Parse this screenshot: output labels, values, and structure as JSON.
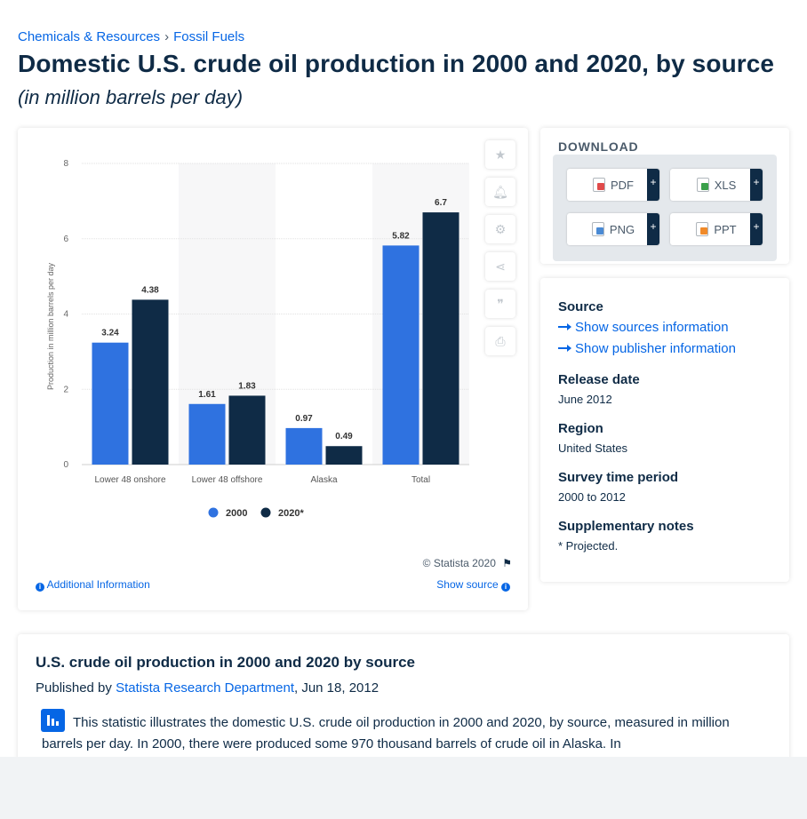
{
  "breadcrumb": {
    "items": [
      "Chemicals & Resources",
      "Fossil Fuels"
    ],
    "separator": "›"
  },
  "page": {
    "title": "Domestic U.S. crude oil production in 2000 and 2020, by source",
    "subtitle": "(in million barrels per day)"
  },
  "chart_data": {
    "type": "bar",
    "categories": [
      "Lower 48 onshore",
      "Lower 48 offshore",
      "Alaska",
      "Total"
    ],
    "series": [
      {
        "name": "2000",
        "values": [
          3.24,
          1.61,
          0.97,
          5.82
        ],
        "color": "#2f72e0"
      },
      {
        "name": "2020*",
        "values": [
          4.38,
          1.83,
          0.49,
          6.7
        ],
        "color": "#0f2b46"
      }
    ],
    "data_labels": {
      "2000": [
        "3.24",
        "1.61",
        "0.97",
        "5.82"
      ],
      "2020*": [
        "4.38",
        "1.83",
        "0.49",
        "6.7"
      ]
    },
    "ylabel": "Production in million barrels per day",
    "ylim": [
      0,
      8
    ],
    "yticks": [
      0,
      2,
      4,
      6,
      8
    ],
    "ytick_labels": [
      "0",
      "2",
      "4",
      "6",
      "8"
    ],
    "grid": true,
    "legend_position": "bottom-center"
  },
  "chart_footer": {
    "copyright": "© Statista 2020",
    "additional_info": "Additional Information",
    "show_source": "Show source"
  },
  "toolbar": {
    "icons": [
      "star-icon",
      "bell-icon",
      "gear-icon",
      "share-icon",
      "quote-icon",
      "print-icon"
    ]
  },
  "download": {
    "title": "DOWNLOAD",
    "buttons": [
      {
        "label": "PDF",
        "color": "#e04a4a"
      },
      {
        "label": "XLS",
        "color": "#3aa04a"
      },
      {
        "label": "PNG",
        "color": "#4a8ad4"
      },
      {
        "label": "PPT",
        "color": "#f08a2a"
      }
    ],
    "plus": "+"
  },
  "meta": {
    "source_heading": "Source",
    "show_sources": "Show sources information",
    "show_publisher": "Show publisher information",
    "release_heading": "Release date",
    "release_value": "June 2012",
    "region_heading": "Region",
    "region_value": "United States",
    "survey_heading": "Survey time period",
    "survey_value": "2000 to 2012",
    "notes_heading": "Supplementary notes",
    "notes_value": "* Projected."
  },
  "description": {
    "heading": "U.S. crude oil production in 2000 and 2020 by source",
    "published_prefix": "Published by ",
    "publisher": "Statista Research Department",
    "published_suffix": ", Jun 18, 2012",
    "text": "This statistic illustrates the domestic U.S. crude oil production in 2000 and 2020, by source, measured in million barrels per day. In 2000, there were produced some 970 thousand barrels of crude oil in Alaska. In"
  }
}
